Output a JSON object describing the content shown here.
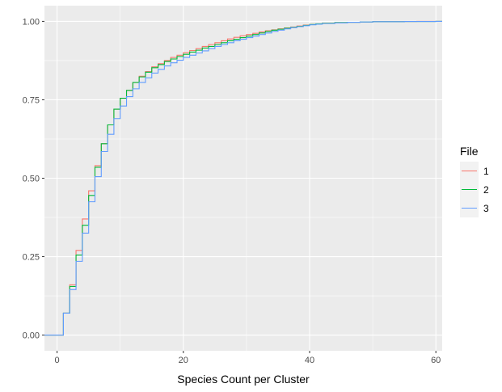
{
  "chart_data": {
    "type": "line",
    "subtype": "step-ecdf",
    "title": "",
    "xlabel": "Species Count per Cluster",
    "ylabel": "",
    "xlim": [
      -2,
      61
    ],
    "ylim": [
      -0.05,
      1.05
    ],
    "x_ticks": [
      0,
      20,
      40,
      60
    ],
    "y_ticks": [
      0.0,
      0.25,
      0.5,
      0.75,
      1.0
    ],
    "x_tick_labels": [
      "0",
      "20",
      "40",
      "60"
    ],
    "y_tick_labels": [
      "0.00",
      "0.25",
      "0.50",
      "0.75",
      "1.00"
    ],
    "grid": true,
    "legend": {
      "title": "File",
      "position": "right"
    },
    "series": [
      {
        "name": "1",
        "color": "#F8766D",
        "x": [
          1,
          2,
          3,
          4,
          5,
          6,
          7,
          8,
          9,
          10,
          11,
          12,
          13,
          14,
          15,
          16,
          17,
          18,
          19,
          20,
          21,
          22,
          23,
          24,
          25,
          26,
          27,
          28,
          29,
          30,
          31,
          32,
          33,
          34,
          35,
          36,
          37,
          38,
          39,
          40,
          41,
          42,
          44,
          46,
          48,
          50,
          55,
          57,
          60
        ],
        "y": [
          0.07,
          0.16,
          0.27,
          0.37,
          0.46,
          0.54,
          0.61,
          0.67,
          0.72,
          0.755,
          0.78,
          0.805,
          0.825,
          0.84,
          0.855,
          0.865,
          0.875,
          0.885,
          0.892,
          0.9,
          0.907,
          0.913,
          0.92,
          0.926,
          0.932,
          0.938,
          0.944,
          0.949,
          0.954,
          0.958,
          0.962,
          0.966,
          0.97,
          0.973,
          0.976,
          0.979,
          0.982,
          0.985,
          0.988,
          0.99,
          0.992,
          0.994,
          0.996,
          0.997,
          0.998,
          0.999,
          0.9995,
          0.9998,
          1.0
        ]
      },
      {
        "name": "2",
        "color": "#00BA38",
        "x": [
          1,
          2,
          3,
          4,
          5,
          6,
          7,
          8,
          9,
          10,
          11,
          12,
          13,
          14,
          15,
          16,
          17,
          18,
          19,
          20,
          21,
          22,
          23,
          24,
          25,
          26,
          27,
          28,
          29,
          30,
          31,
          32,
          33,
          34,
          35,
          36,
          37,
          38,
          39,
          40,
          41,
          42,
          44,
          46,
          48,
          50,
          55,
          60
        ],
        "y": [
          0.07,
          0.155,
          0.255,
          0.35,
          0.445,
          0.535,
          0.61,
          0.67,
          0.72,
          0.755,
          0.78,
          0.805,
          0.823,
          0.838,
          0.852,
          0.862,
          0.872,
          0.88,
          0.888,
          0.895,
          0.902,
          0.908,
          0.915,
          0.92,
          0.926,
          0.932,
          0.938,
          0.943,
          0.948,
          0.953,
          0.958,
          0.963,
          0.968,
          0.972,
          0.975,
          0.978,
          0.981,
          0.984,
          0.987,
          0.99,
          0.992,
          0.994,
          0.996,
          0.997,
          0.998,
          0.999,
          0.9995,
          1.0
        ]
      },
      {
        "name": "3",
        "color": "#619CFF",
        "x": [
          1,
          2,
          3,
          4,
          5,
          6,
          7,
          8,
          9,
          10,
          11,
          12,
          13,
          14,
          15,
          16,
          17,
          18,
          19,
          20,
          21,
          22,
          23,
          24,
          25,
          26,
          27,
          28,
          29,
          30,
          31,
          32,
          33,
          34,
          35,
          36,
          37,
          38,
          39,
          40,
          41,
          42,
          44,
          46,
          48,
          50,
          55,
          60
        ],
        "y": [
          0.07,
          0.145,
          0.235,
          0.325,
          0.425,
          0.505,
          0.585,
          0.64,
          0.69,
          0.73,
          0.76,
          0.785,
          0.805,
          0.82,
          0.835,
          0.847,
          0.858,
          0.868,
          0.876,
          0.885,
          0.892,
          0.899,
          0.906,
          0.913,
          0.92,
          0.926,
          0.932,
          0.938,
          0.943,
          0.948,
          0.953,
          0.958,
          0.963,
          0.968,
          0.972,
          0.976,
          0.98,
          0.983,
          0.986,
          0.989,
          0.991,
          0.993,
          0.995,
          0.997,
          0.998,
          0.999,
          0.9995,
          1.0
        ]
      }
    ]
  }
}
